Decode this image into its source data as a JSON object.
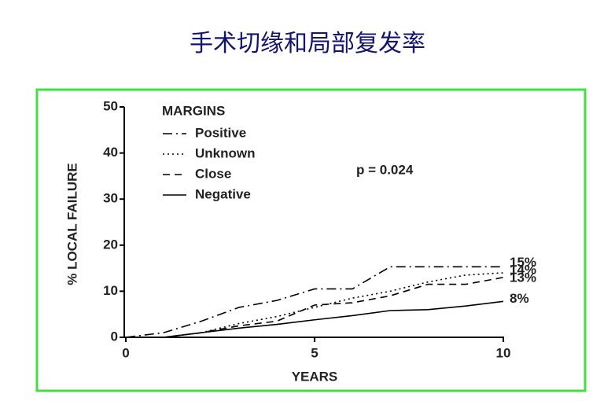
{
  "slide_title": "手术切缘和局部复发率",
  "chart_data": {
    "type": "line",
    "xlabel": "YEARS",
    "ylabel": "% LOCAL FAILURE",
    "annotation": "p = 0.024",
    "legend_title": "MARGINS",
    "legend": "upper left",
    "x": [
      0,
      1,
      2,
      3,
      4,
      5,
      6,
      7,
      8,
      9,
      10
    ],
    "xlim": [
      0,
      10
    ],
    "xticks": [
      0,
      5,
      10
    ],
    "ylim": [
      0,
      50
    ],
    "yticks": [
      0,
      10,
      20,
      30,
      40,
      50
    ],
    "series": [
      {
        "name": "Positive",
        "color": "#000000",
        "dash": "dashdot",
        "values": [
          0,
          1,
          3.5,
          6.5,
          8,
          10.5,
          10.5,
          15.3,
          15.3,
          15.3,
          15.3
        ],
        "value_labels": [
          null,
          null,
          null,
          null,
          null,
          null,
          null,
          null,
          null,
          null,
          "15%"
        ]
      },
      {
        "name": "Unknown",
        "color": "#000000",
        "dash": "dot",
        "values": [
          0,
          0,
          1,
          3,
          4.5,
          6.5,
          8.5,
          10,
          12,
          13.5,
          14
        ],
        "value_labels": [
          null,
          null,
          null,
          null,
          null,
          null,
          null,
          null,
          null,
          null,
          "14%"
        ]
      },
      {
        "name": "Close",
        "color": "#000000",
        "dash": "dash",
        "values": [
          0,
          0,
          1,
          2.5,
          3.5,
          7,
          7.5,
          9,
          11.5,
          11.5,
          13
        ],
        "value_labels": [
          null,
          null,
          null,
          null,
          null,
          null,
          null,
          null,
          null,
          null,
          "13%"
        ]
      },
      {
        "name": "Negative",
        "color": "#000000",
        "dash": "solid",
        "values": [
          0,
          0,
          1,
          2,
          2.8,
          3.8,
          4.7,
          5.8,
          6,
          6.8,
          7.8
        ],
        "value_labels": [
          null,
          null,
          null,
          null,
          null,
          null,
          null,
          null,
          null,
          null,
          "8%"
        ]
      }
    ]
  }
}
